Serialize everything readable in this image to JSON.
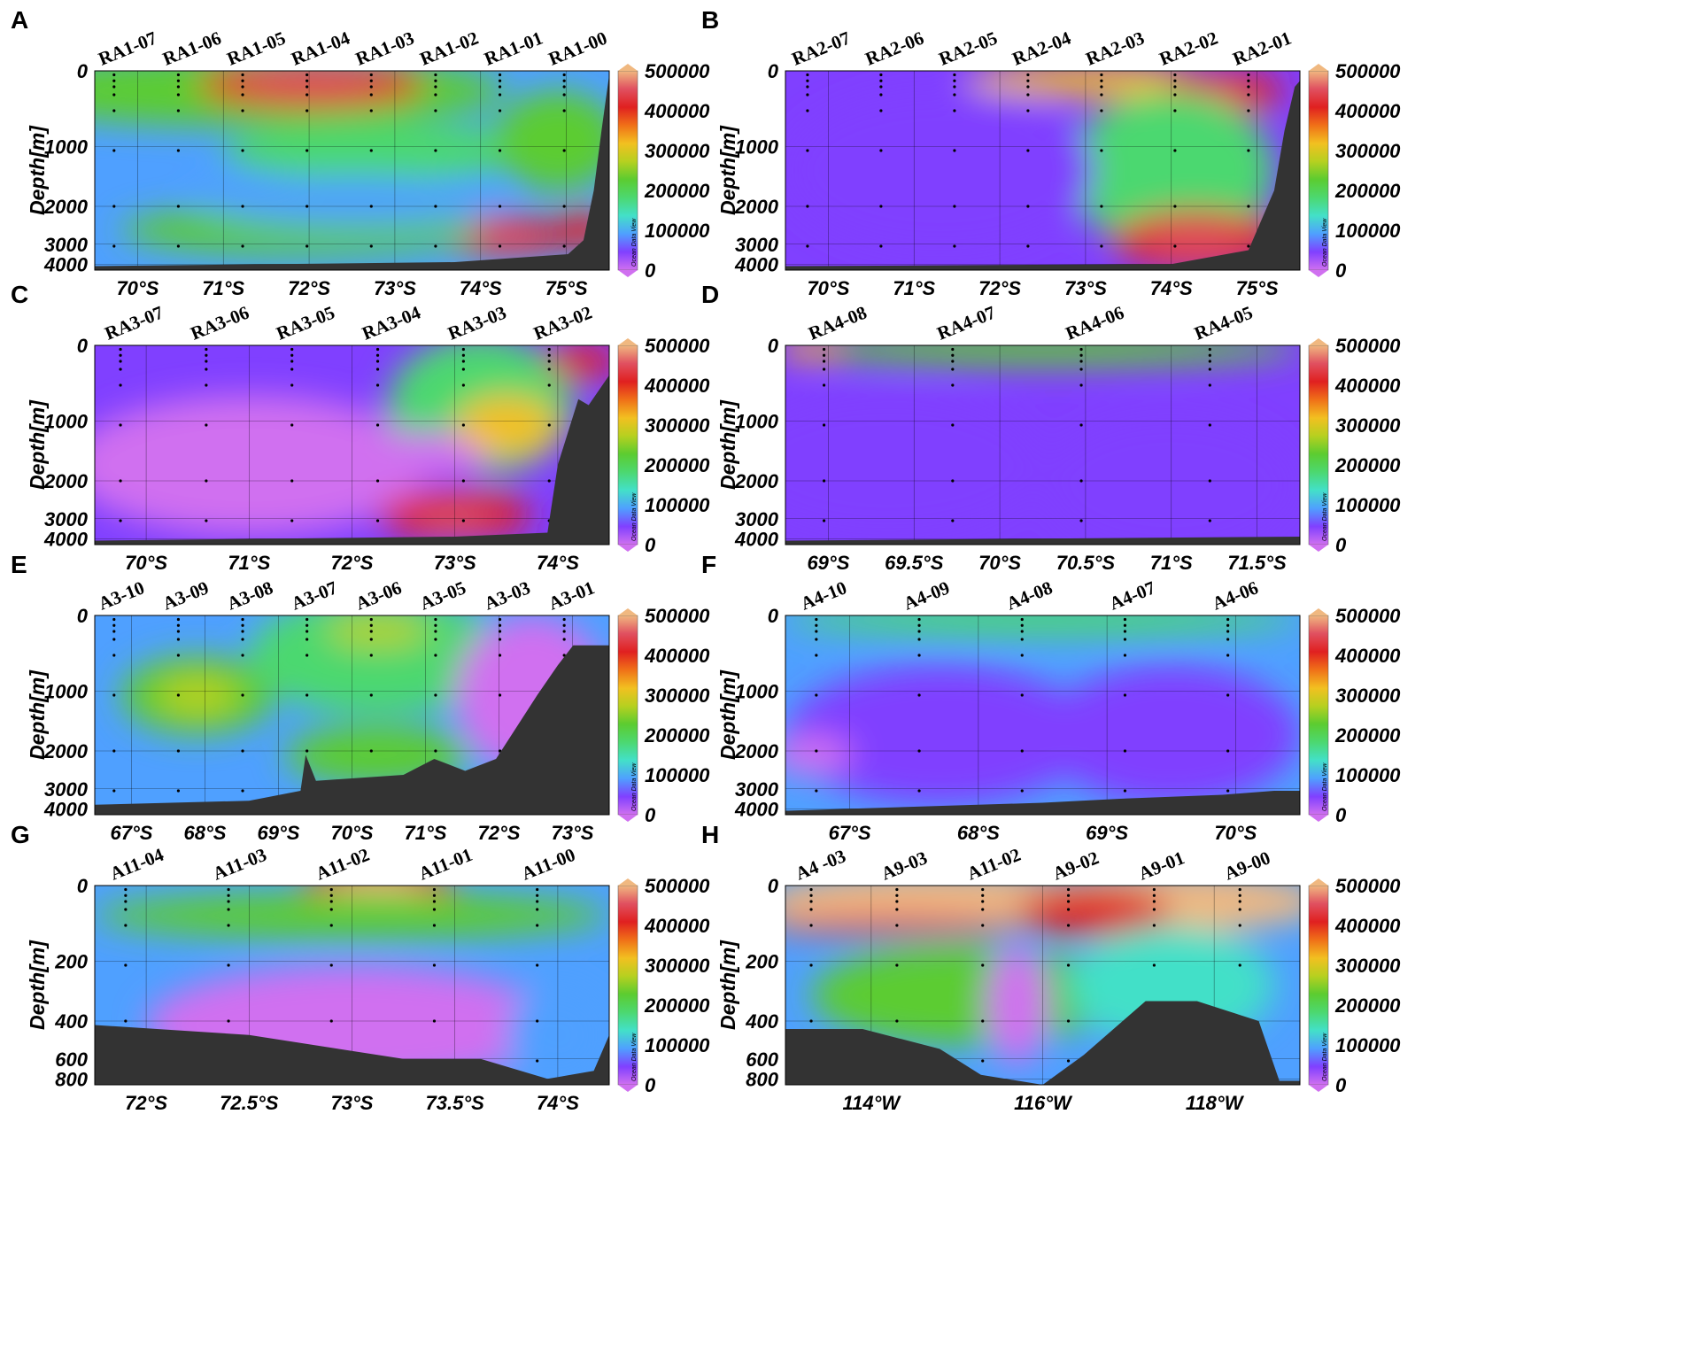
{
  "colorbar": {
    "colors": [
      "#d070f0",
      "#8040ff",
      "#4fa0ff",
      "#43e0c8",
      "#4cd870",
      "#5ccc30",
      "#b6d020",
      "#f2c020",
      "#f07018",
      "#e02020",
      "#e05060",
      "#f0b880"
    ],
    "bathymetry_color": "#333333"
  },
  "chart_data": [
    {
      "panel": "A",
      "type": "heatmap",
      "ylabel": "Depth[m]",
      "xticks": [
        "70°S",
        "71°S",
        "72°S",
        "73°S",
        "74°S",
        "75°S"
      ],
      "yticks": [
        "0",
        "1000",
        "2000",
        "3000",
        "4000"
      ],
      "stations": [
        "RA1-07",
        "RA1-06",
        "RA1-05",
        "RA1-04",
        "RA1-03",
        "RA1-02",
        "RA1-01",
        "RA1-00"
      ],
      "colorbar_ticks": [
        "500000",
        "400000",
        "300000",
        "200000",
        "100000",
        "0"
      ],
      "colorbar_range": [
        0,
        500000
      ],
      "watermark": "Ocean Data View"
    },
    {
      "panel": "B",
      "type": "heatmap",
      "ylabel": "Depth[m]",
      "xticks": [
        "70°S",
        "71°S",
        "72°S",
        "73°S",
        "74°S",
        "75°S"
      ],
      "yticks": [
        "0",
        "1000",
        "2000",
        "3000",
        "4000"
      ],
      "stations": [
        "RA2-07",
        "RA2-06",
        "RA2-05",
        "RA2-04",
        "RA2-03",
        "RA2-02",
        "RA2-01"
      ],
      "colorbar_ticks": [
        "500000",
        "400000",
        "300000",
        "200000",
        "100000",
        "0"
      ],
      "colorbar_range": [
        0,
        500000
      ],
      "watermark": "Ocean Data View"
    },
    {
      "panel": "C",
      "type": "heatmap",
      "ylabel": "Depth[m]",
      "xticks": [
        "70°S",
        "71°S",
        "72°S",
        "73°S",
        "74°S"
      ],
      "yticks": [
        "0",
        "1000",
        "2000",
        "3000",
        "4000"
      ],
      "stations": [
        "RA3-07",
        "RA3-06",
        "RA3-05",
        "RA3-04",
        "RA3-03",
        "RA3-02"
      ],
      "colorbar_ticks": [
        "500000",
        "400000",
        "300000",
        "200000",
        "100000",
        "0"
      ],
      "colorbar_range": [
        0,
        500000
      ],
      "watermark": "Ocean Data View"
    },
    {
      "panel": "D",
      "type": "heatmap",
      "ylabel": "Depth[m]",
      "xticks": [
        "69°S",
        "69.5°S",
        "70°S",
        "70.5°S",
        "71°S",
        "71.5°S"
      ],
      "yticks": [
        "0",
        "1000",
        "2000",
        "3000",
        "4000"
      ],
      "stations": [
        "RA4-08",
        "RA4-07",
        "RA4-06",
        "RA4-05"
      ],
      "colorbar_ticks": [
        "500000",
        "400000",
        "300000",
        "200000",
        "100000",
        "0"
      ],
      "colorbar_range": [
        0,
        500000
      ],
      "watermark": "Ocean Data View"
    },
    {
      "panel": "E",
      "type": "heatmap",
      "ylabel": "Depth[m]",
      "xticks": [
        "67°S",
        "68°S",
        "69°S",
        "70°S",
        "71°S",
        "72°S",
        "73°S"
      ],
      "yticks": [
        "0",
        "1000",
        "2000",
        "3000",
        "4000"
      ],
      "stations": [
        "A3-10",
        "A3-09",
        "A3-08",
        "A3-07",
        "A3-06",
        "A3-05",
        "A3-03",
        "A3-01"
      ],
      "colorbar_ticks": [
        "500000",
        "400000",
        "300000",
        "200000",
        "100000",
        "0"
      ],
      "colorbar_range": [
        0,
        500000
      ],
      "watermark": "Ocean Data View"
    },
    {
      "panel": "F",
      "type": "heatmap",
      "ylabel": "Depth[m]",
      "xticks": [
        "67°S",
        "68°S",
        "69°S",
        "70°S"
      ],
      "yticks": [
        "0",
        "1000",
        "2000",
        "3000",
        "4000"
      ],
      "stations": [
        "A4-10",
        "A4-09",
        "A4-08",
        "A4-07",
        "A4-06"
      ],
      "colorbar_ticks": [
        "500000",
        "400000",
        "300000",
        "200000",
        "100000",
        "0"
      ],
      "colorbar_range": [
        0,
        500000
      ],
      "watermark": "Ocean Data View"
    },
    {
      "panel": "G",
      "type": "heatmap",
      "ylabel": "Depth[m]",
      "xticks": [
        "72°S",
        "72.5°S",
        "73°S",
        "73.5°S",
        "74°S"
      ],
      "yticks": [
        "0",
        "200",
        "400",
        "600",
        "800"
      ],
      "stations": [
        "A11-04",
        "A11-03",
        "A11-02",
        "A11-01",
        "A11-00"
      ],
      "colorbar_ticks": [
        "500000",
        "400000",
        "300000",
        "200000",
        "100000",
        "0"
      ],
      "colorbar_range": [
        0,
        500000
      ],
      "watermark": "Ocean Data View"
    },
    {
      "panel": "H",
      "type": "heatmap",
      "ylabel": "Depth[m]",
      "xticks": [
        "114°W",
        "116°W",
        "118°W"
      ],
      "yticks": [
        "0",
        "200",
        "400",
        "600",
        "800"
      ],
      "stations": [
        "A4 -03",
        "A9-03",
        "A11-02",
        "A9-02",
        "A9-01",
        "A9-00"
      ],
      "colorbar_ticks": [
        "500000",
        "400000",
        "300000",
        "200000",
        "100000",
        "0"
      ],
      "colorbar_range": [
        0,
        500000
      ],
      "watermark": "Ocean Data View"
    }
  ]
}
